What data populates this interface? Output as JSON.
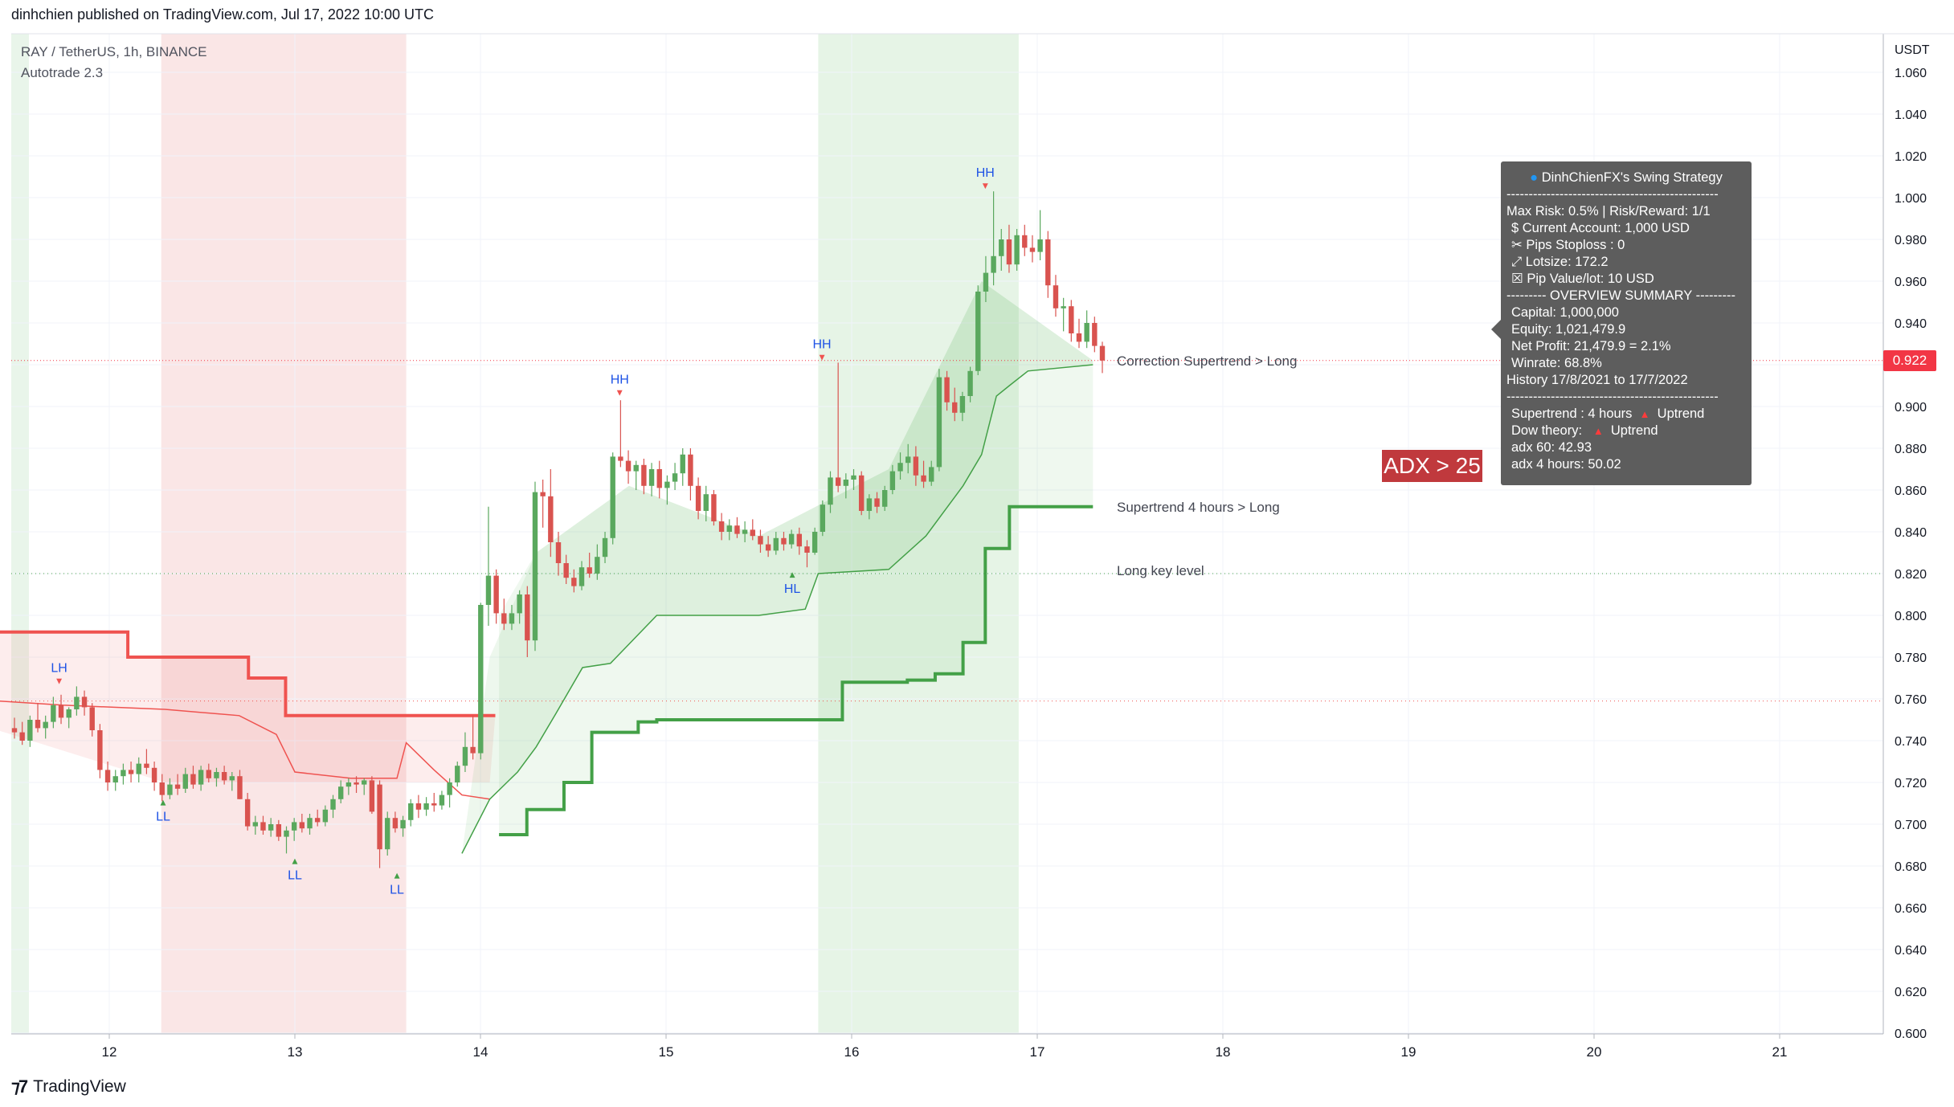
{
  "header": {
    "publish_line": "dinhchien published on TradingView.com, Jul 17, 2022 10:00 UTC"
  },
  "legend": {
    "symbol_line": "RAY / TetherUS, 1h, BINANCE",
    "indicator_line": "Autotrade 2.3"
  },
  "axis": {
    "currency": "USDT",
    "last_price": "0.922"
  },
  "annotations": {
    "correction_supertrend": "Correction Supertrend  > Long",
    "supertrend_4h": "Supertrend 4 hours > Long",
    "long_key_level": "Long key level",
    "adx": "ADX > 25"
  },
  "panel": {
    "title": "DinhChienFX's Swing Strategy",
    "separator": "------------------------------------------------",
    "max_risk": "Max Risk: 0.5% | Risk/Reward: 1/1",
    "current_account": "$ Current Account: 1,000 USD",
    "pips_stoploss": "✂ Pips Stoploss : 0",
    "lotsize": "⤢ Lotsize: 172.2",
    "pip_value": "☒ Pip Value/lot: 10 USD",
    "overview": "--------- OVERVIEW SUMMARY ---------",
    "capital": "Capital: 1,000,000",
    "equity": "Equity: 1,021,479.9",
    "net_profit": "Net Profit: 21,479.9 = 2.1%",
    "winrate": "Winrate: 68.8%",
    "history": "History 17/8/2021 to 17/7/2022",
    "supertrend_label": "Supertrend : 4 hours",
    "supertrend_value": "Uptrend",
    "dow_label": "Dow theory:",
    "dow_value": "Uptrend",
    "adx60": "adx 60: 42.93",
    "adx4h": "adx 4 hours: 50.02"
  },
  "footer": {
    "brand": "TradingView"
  },
  "colors": {
    "up": "#26a69a",
    "bull_candle": "#5aa85e",
    "bear_candle": "#d9534f",
    "supertrend_long": "#43a047",
    "supertrend_short": "#ef5350",
    "panel_bg": "#5d5d5d",
    "adx_badge": "#c0393d",
    "price_tag": "#f23645"
  },
  "chart_data": {
    "type": "candlestick",
    "title": "RAY / TetherUS, 1h, BINANCE",
    "x_tick_labels": [
      "12",
      "13",
      "14",
      "15",
      "16",
      "17",
      "18",
      "19",
      "20",
      "21"
    ],
    "y_ticks": [
      1.06,
      1.04,
      1.02,
      1.0,
      0.98,
      0.96,
      0.94,
      0.92,
      0.9,
      0.88,
      0.86,
      0.84,
      0.82,
      0.8,
      0.78,
      0.76,
      0.74,
      0.72,
      0.7,
      0.68,
      0.66,
      0.64,
      0.62,
      0.6
    ],
    "y_tick_labels": [
      "1.060",
      "1.040",
      "1.020",
      "1.000",
      "0.980",
      "0.960",
      "0.940",
      "0.920",
      "0.900",
      "0.880",
      "0.860",
      "0.840",
      "0.820",
      "0.800",
      "0.780",
      "0.760",
      "0.740",
      "0.720",
      "0.700",
      "0.680",
      "0.660",
      "0.640",
      "0.620",
      "0.600"
    ],
    "ylim": [
      0.6,
      1.065
    ],
    "grid": true,
    "last_price": 0.922,
    "swing_labels": [
      {
        "label": "LH",
        "day": 11.73,
        "price": 0.766,
        "pos": "above"
      },
      {
        "label": "LL",
        "day": 12.29,
        "price": 0.714,
        "pos": "below"
      },
      {
        "label": "LL",
        "day": 13.0,
        "price": 0.686,
        "pos": "below"
      },
      {
        "label": "LL",
        "day": 13.55,
        "price": 0.679,
        "pos": "below"
      },
      {
        "label": "HH",
        "day": 14.75,
        "price": 0.904,
        "pos": "above"
      },
      {
        "label": "HL",
        "day": 15.68,
        "price": 0.823,
        "pos": "below"
      },
      {
        "label": "HH",
        "day": 15.84,
        "price": 0.921,
        "pos": "above"
      },
      {
        "label": "HH",
        "day": 16.72,
        "price": 1.003,
        "pos": "above"
      }
    ],
    "candles": [
      {
        "o": 0.746,
        "h": 0.751,
        "l": 0.741,
        "c": 0.744
      },
      {
        "o": 0.744,
        "h": 0.749,
        "l": 0.738,
        "c": 0.74
      },
      {
        "o": 0.74,
        "h": 0.752,
        "l": 0.737,
        "c": 0.75
      },
      {
        "o": 0.75,
        "h": 0.758,
        "l": 0.744,
        "c": 0.746
      },
      {
        "o": 0.746,
        "h": 0.752,
        "l": 0.741,
        "c": 0.749
      },
      {
        "o": 0.749,
        "h": 0.761,
        "l": 0.746,
        "c": 0.757
      },
      {
        "o": 0.757,
        "h": 0.762,
        "l": 0.748,
        "c": 0.751
      },
      {
        "o": 0.751,
        "h": 0.756,
        "l": 0.746,
        "c": 0.755
      },
      {
        "o": 0.755,
        "h": 0.766,
        "l": 0.752,
        "c": 0.761
      },
      {
        "o": 0.761,
        "h": 0.764,
        "l": 0.752,
        "c": 0.756
      },
      {
        "o": 0.756,
        "h": 0.758,
        "l": 0.742,
        "c": 0.745
      },
      {
        "o": 0.745,
        "h": 0.748,
        "l": 0.722,
        "c": 0.726
      },
      {
        "o": 0.726,
        "h": 0.73,
        "l": 0.716,
        "c": 0.72
      },
      {
        "o": 0.72,
        "h": 0.726,
        "l": 0.716,
        "c": 0.723
      },
      {
        "o": 0.723,
        "h": 0.729,
        "l": 0.719,
        "c": 0.726
      },
      {
        "o": 0.726,
        "h": 0.73,
        "l": 0.72,
        "c": 0.724
      },
      {
        "o": 0.724,
        "h": 0.732,
        "l": 0.72,
        "c": 0.729
      },
      {
        "o": 0.729,
        "h": 0.736,
        "l": 0.724,
        "c": 0.727
      },
      {
        "o": 0.727,
        "h": 0.73,
        "l": 0.716,
        "c": 0.72
      },
      {
        "o": 0.72,
        "h": 0.724,
        "l": 0.711,
        "c": 0.714
      },
      {
        "o": 0.714,
        "h": 0.722,
        "l": 0.712,
        "c": 0.719
      },
      {
        "o": 0.719,
        "h": 0.724,
        "l": 0.714,
        "c": 0.717
      },
      {
        "o": 0.717,
        "h": 0.727,
        "l": 0.715,
        "c": 0.724
      },
      {
        "o": 0.724,
        "h": 0.728,
        "l": 0.717,
        "c": 0.719
      },
      {
        "o": 0.719,
        "h": 0.728,
        "l": 0.716,
        "c": 0.726
      },
      {
        "o": 0.726,
        "h": 0.729,
        "l": 0.72,
        "c": 0.722
      },
      {
        "o": 0.722,
        "h": 0.727,
        "l": 0.718,
        "c": 0.725
      },
      {
        "o": 0.725,
        "h": 0.728,
        "l": 0.719,
        "c": 0.721
      },
      {
        "o": 0.721,
        "h": 0.725,
        "l": 0.716,
        "c": 0.723
      },
      {
        "o": 0.723,
        "h": 0.726,
        "l": 0.712,
        "c": 0.712
      },
      {
        "o": 0.712,
        "h": 0.715,
        "l": 0.697,
        "c": 0.699
      },
      {
        "o": 0.699,
        "h": 0.704,
        "l": 0.695,
        "c": 0.701
      },
      {
        "o": 0.701,
        "h": 0.704,
        "l": 0.695,
        "c": 0.697
      },
      {
        "o": 0.697,
        "h": 0.703,
        "l": 0.694,
        "c": 0.7
      },
      {
        "o": 0.7,
        "h": 0.702,
        "l": 0.692,
        "c": 0.694
      },
      {
        "o": 0.694,
        "h": 0.699,
        "l": 0.686,
        "c": 0.697
      },
      {
        "o": 0.697,
        "h": 0.703,
        "l": 0.692,
        "c": 0.701
      },
      {
        "o": 0.701,
        "h": 0.705,
        "l": 0.696,
        "c": 0.698
      },
      {
        "o": 0.698,
        "h": 0.705,
        "l": 0.695,
        "c": 0.703
      },
      {
        "o": 0.703,
        "h": 0.707,
        "l": 0.699,
        "c": 0.701
      },
      {
        "o": 0.701,
        "h": 0.709,
        "l": 0.699,
        "c": 0.707
      },
      {
        "o": 0.707,
        "h": 0.714,
        "l": 0.703,
        "c": 0.712
      },
      {
        "o": 0.712,
        "h": 0.721,
        "l": 0.71,
        "c": 0.718
      },
      {
        "o": 0.718,
        "h": 0.722,
        "l": 0.714,
        "c": 0.72
      },
      {
        "o": 0.72,
        "h": 0.723,
        "l": 0.715,
        "c": 0.719
      },
      {
        "o": 0.719,
        "h": 0.722,
        "l": 0.714,
        "c": 0.721
      },
      {
        "o": 0.721,
        "h": 0.723,
        "l": 0.705,
        "c": 0.706
      },
      {
        "o": 0.719,
        "h": 0.721,
        "l": 0.679,
        "c": 0.688
      },
      {
        "o": 0.688,
        "h": 0.706,
        "l": 0.685,
        "c": 0.703
      },
      {
        "o": 0.703,
        "h": 0.706,
        "l": 0.696,
        "c": 0.698
      },
      {
        "o": 0.698,
        "h": 0.704,
        "l": 0.694,
        "c": 0.702
      },
      {
        "o": 0.702,
        "h": 0.712,
        "l": 0.699,
        "c": 0.71
      },
      {
        "o": 0.71,
        "h": 0.714,
        "l": 0.703,
        "c": 0.707
      },
      {
        "o": 0.707,
        "h": 0.713,
        "l": 0.704,
        "c": 0.71
      },
      {
        "o": 0.71,
        "h": 0.715,
        "l": 0.706,
        "c": 0.709
      },
      {
        "o": 0.709,
        "h": 0.716,
        "l": 0.707,
        "c": 0.714
      },
      {
        "o": 0.714,
        "h": 0.722,
        "l": 0.708,
        "c": 0.72
      },
      {
        "o": 0.72,
        "h": 0.73,
        "l": 0.718,
        "c": 0.728
      },
      {
        "o": 0.728,
        "h": 0.744,
        "l": 0.725,
        "c": 0.737
      },
      {
        "o": 0.737,
        "h": 0.752,
        "l": 0.731,
        "c": 0.734
      },
      {
        "o": 0.734,
        "h": 0.806,
        "l": 0.731,
        "c": 0.805
      },
      {
        "o": 0.805,
        "h": 0.852,
        "l": 0.795,
        "c": 0.819
      },
      {
        "o": 0.819,
        "h": 0.822,
        "l": 0.796,
        "c": 0.801
      },
      {
        "o": 0.801,
        "h": 0.808,
        "l": 0.793,
        "c": 0.796
      },
      {
        "o": 0.796,
        "h": 0.805,
        "l": 0.793,
        "c": 0.801
      },
      {
        "o": 0.801,
        "h": 0.812,
        "l": 0.796,
        "c": 0.81
      },
      {
        "o": 0.81,
        "h": 0.814,
        "l": 0.78,
        "c": 0.788
      },
      {
        "o": 0.788,
        "h": 0.864,
        "l": 0.783,
        "c": 0.859
      },
      {
        "o": 0.859,
        "h": 0.865,
        "l": 0.842,
        "c": 0.857
      },
      {
        "o": 0.857,
        "h": 0.87,
        "l": 0.828,
        "c": 0.835
      },
      {
        "o": 0.835,
        "h": 0.84,
        "l": 0.819,
        "c": 0.825
      },
      {
        "o": 0.825,
        "h": 0.829,
        "l": 0.815,
        "c": 0.818
      },
      {
        "o": 0.818,
        "h": 0.822,
        "l": 0.811,
        "c": 0.814
      },
      {
        "o": 0.814,
        "h": 0.826,
        "l": 0.812,
        "c": 0.823
      },
      {
        "o": 0.823,
        "h": 0.83,
        "l": 0.818,
        "c": 0.82
      },
      {
        "o": 0.82,
        "h": 0.834,
        "l": 0.817,
        "c": 0.828
      },
      {
        "o": 0.828,
        "h": 0.84,
        "l": 0.825,
        "c": 0.837
      },
      {
        "o": 0.837,
        "h": 0.878,
        "l": 0.834,
        "c": 0.876
      },
      {
        "o": 0.876,
        "h": 0.903,
        "l": 0.871,
        "c": 0.874
      },
      {
        "o": 0.874,
        "h": 0.879,
        "l": 0.863,
        "c": 0.869
      },
      {
        "o": 0.869,
        "h": 0.874,
        "l": 0.86,
        "c": 0.872
      },
      {
        "o": 0.872,
        "h": 0.875,
        "l": 0.858,
        "c": 0.862
      },
      {
        "o": 0.862,
        "h": 0.873,
        "l": 0.857,
        "c": 0.87
      },
      {
        "o": 0.87,
        "h": 0.874,
        "l": 0.856,
        "c": 0.861
      },
      {
        "o": 0.861,
        "h": 0.867,
        "l": 0.853,
        "c": 0.864
      },
      {
        "o": 0.864,
        "h": 0.873,
        "l": 0.86,
        "c": 0.868
      },
      {
        "o": 0.868,
        "h": 0.88,
        "l": 0.862,
        "c": 0.877
      },
      {
        "o": 0.877,
        "h": 0.88,
        "l": 0.855,
        "c": 0.862
      },
      {
        "o": 0.862,
        "h": 0.866,
        "l": 0.846,
        "c": 0.85
      },
      {
        "o": 0.85,
        "h": 0.862,
        "l": 0.845,
        "c": 0.858
      },
      {
        "o": 0.858,
        "h": 0.86,
        "l": 0.843,
        "c": 0.845
      },
      {
        "o": 0.845,
        "h": 0.849,
        "l": 0.836,
        "c": 0.84
      },
      {
        "o": 0.84,
        "h": 0.846,
        "l": 0.836,
        "c": 0.843
      },
      {
        "o": 0.843,
        "h": 0.847,
        "l": 0.837,
        "c": 0.839
      },
      {
        "o": 0.839,
        "h": 0.845,
        "l": 0.835,
        "c": 0.841
      },
      {
        "o": 0.841,
        "h": 0.846,
        "l": 0.836,
        "c": 0.838
      },
      {
        "o": 0.838,
        "h": 0.841,
        "l": 0.83,
        "c": 0.834
      },
      {
        "o": 0.834,
        "h": 0.838,
        "l": 0.828,
        "c": 0.831
      },
      {
        "o": 0.831,
        "h": 0.84,
        "l": 0.829,
        "c": 0.837
      },
      {
        "o": 0.837,
        "h": 0.84,
        "l": 0.831,
        "c": 0.834
      },
      {
        "o": 0.834,
        "h": 0.841,
        "l": 0.832,
        "c": 0.839
      },
      {
        "o": 0.839,
        "h": 0.842,
        "l": 0.829,
        "c": 0.833
      },
      {
        "o": 0.833,
        "h": 0.836,
        "l": 0.823,
        "c": 0.83
      },
      {
        "o": 0.83,
        "h": 0.842,
        "l": 0.829,
        "c": 0.84
      },
      {
        "o": 0.84,
        "h": 0.855,
        "l": 0.838,
        "c": 0.853
      },
      {
        "o": 0.853,
        "h": 0.869,
        "l": 0.849,
        "c": 0.866
      },
      {
        "o": 0.866,
        "h": 0.921,
        "l": 0.859,
        "c": 0.862
      },
      {
        "o": 0.862,
        "h": 0.868,
        "l": 0.856,
        "c": 0.865
      },
      {
        "o": 0.865,
        "h": 0.87,
        "l": 0.86,
        "c": 0.867
      },
      {
        "o": 0.867,
        "h": 0.869,
        "l": 0.848,
        "c": 0.85
      },
      {
        "o": 0.85,
        "h": 0.858,
        "l": 0.846,
        "c": 0.856
      },
      {
        "o": 0.856,
        "h": 0.859,
        "l": 0.849,
        "c": 0.852
      },
      {
        "o": 0.852,
        "h": 0.862,
        "l": 0.85,
        "c": 0.86
      },
      {
        "o": 0.86,
        "h": 0.872,
        "l": 0.858,
        "c": 0.869
      },
      {
        "o": 0.869,
        "h": 0.878,
        "l": 0.865,
        "c": 0.873
      },
      {
        "o": 0.873,
        "h": 0.882,
        "l": 0.868,
        "c": 0.876
      },
      {
        "o": 0.876,
        "h": 0.881,
        "l": 0.862,
        "c": 0.867
      },
      {
        "o": 0.867,
        "h": 0.874,
        "l": 0.861,
        "c": 0.864
      },
      {
        "o": 0.864,
        "h": 0.874,
        "l": 0.862,
        "c": 0.871
      },
      {
        "o": 0.871,
        "h": 0.918,
        "l": 0.869,
        "c": 0.914
      },
      {
        "o": 0.914,
        "h": 0.917,
        "l": 0.898,
        "c": 0.902
      },
      {
        "o": 0.902,
        "h": 0.909,
        "l": 0.893,
        "c": 0.897
      },
      {
        "o": 0.897,
        "h": 0.907,
        "l": 0.893,
        "c": 0.905
      },
      {
        "o": 0.905,
        "h": 0.919,
        "l": 0.902,
        "c": 0.917
      },
      {
        "o": 0.917,
        "h": 0.958,
        "l": 0.915,
        "c": 0.955
      },
      {
        "o": 0.955,
        "h": 0.972,
        "l": 0.95,
        "c": 0.964
      },
      {
        "o": 0.964,
        "h": 1.003,
        "l": 0.958,
        "c": 0.972
      },
      {
        "o": 0.972,
        "h": 0.985,
        "l": 0.965,
        "c": 0.98
      },
      {
        "o": 0.98,
        "h": 0.987,
        "l": 0.964,
        "c": 0.968
      },
      {
        "o": 0.968,
        "h": 0.985,
        "l": 0.965,
        "c": 0.982
      },
      {
        "o": 0.982,
        "h": 0.987,
        "l": 0.972,
        "c": 0.976
      },
      {
        "o": 0.976,
        "h": 0.982,
        "l": 0.969,
        "c": 0.974
      },
      {
        "o": 0.974,
        "h": 0.994,
        "l": 0.97,
        "c": 0.98
      },
      {
        "o": 0.98,
        "h": 0.984,
        "l": 0.952,
        "c": 0.958
      },
      {
        "o": 0.958,
        "h": 0.963,
        "l": 0.943,
        "c": 0.947
      },
      {
        "o": 0.947,
        "h": 0.952,
        "l": 0.936,
        "c": 0.948
      },
      {
        "o": 0.948,
        "h": 0.951,
        "l": 0.931,
        "c": 0.935
      },
      {
        "o": 0.935,
        "h": 0.942,
        "l": 0.928,
        "c": 0.931
      },
      {
        "o": 0.931,
        "h": 0.946,
        "l": 0.928,
        "c": 0.94
      },
      {
        "o": 0.94,
        "h": 0.943,
        "l": 0.926,
        "c": 0.929
      },
      {
        "o": 0.929,
        "h": 0.931,
        "l": 0.916,
        "c": 0.922
      }
    ],
    "supertrend_4h": {
      "short_segments": [
        {
          "x": [
            11.4,
            12.1,
            12.1,
            12.75,
            12.75,
            12.95,
            12.95,
            14.08
          ],
          "y": [
            0.792,
            0.792,
            0.78,
            0.78,
            0.77,
            0.77,
            0.752,
            0.752
          ]
        }
      ],
      "long_segments": [
        {
          "x": [
            14.1,
            14.25,
            14.25,
            14.45,
            14.45,
            14.6,
            14.6,
            14.85,
            14.85,
            14.95,
            14.95,
            15.1,
            15.1,
            15.95,
            15.95,
            16.3,
            16.3,
            16.45,
            16.45,
            16.6,
            16.6,
            16.72,
            16.72,
            16.85,
            16.85,
            16.98,
            16.98,
            17.3
          ],
          "y": [
            0.695,
            0.695,
            0.707,
            0.707,
            0.72,
            0.72,
            0.744,
            0.744,
            0.749,
            0.749,
            0.75,
            0.75,
            0.75,
            0.75,
            0.768,
            0.768,
            0.769,
            0.769,
            0.772,
            0.772,
            0.787,
            0.787,
            0.832,
            0.832,
            0.852,
            0.852,
            0.852,
            0.852
          ]
        }
      ]
    },
    "correction_supertrend": {
      "short": {
        "x": [
          11.4,
          11.75,
          12.3,
          12.7,
          12.9,
          13.0,
          13.3,
          13.55,
          13.6,
          13.75,
          13.9,
          14.05
        ],
        "y": [
          0.759,
          0.757,
          0.755,
          0.752,
          0.743,
          0.725,
          0.722,
          0.722,
          0.739,
          0.726,
          0.714,
          0.712
        ]
      },
      "long": {
        "x": [
          13.9,
          14.05,
          14.2,
          14.3,
          14.4,
          14.55,
          14.7,
          14.95,
          15.5,
          15.75,
          15.82,
          16.2,
          16.4,
          16.6,
          16.7,
          16.78,
          16.85,
          16.95,
          17.3
        ],
        "y": [
          0.686,
          0.712,
          0.725,
          0.737,
          0.752,
          0.775,
          0.777,
          0.8,
          0.8,
          0.803,
          0.82,
          0.822,
          0.838,
          0.862,
          0.877,
          0.905,
          0.91,
          0.917,
          0.92
        ]
      }
    },
    "long_key_level": 0.82,
    "short_key_level": 0.759
  }
}
